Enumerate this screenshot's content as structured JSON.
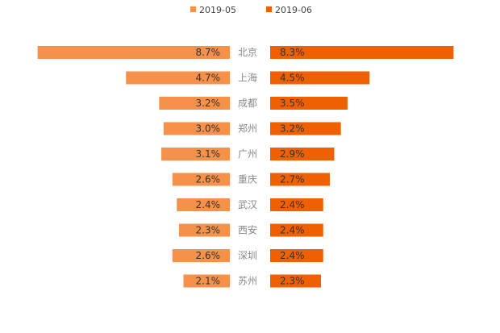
{
  "chart_data": {
    "type": "bar",
    "layout": "butterfly",
    "legend": [
      {
        "name": "2019-05",
        "color": "#F5914A"
      },
      {
        "name": "2019-06",
        "color": "#EE6002"
      }
    ],
    "categories": [
      "北京",
      "上海",
      "成都",
      "郑州",
      "广州",
      "重庆",
      "武汉",
      "西安",
      "深圳",
      "苏州"
    ],
    "series": [
      {
        "name": "2019-05",
        "side": "left",
        "color": "#F5914A",
        "values": [
          8.7,
          4.7,
          3.2,
          3.0,
          3.1,
          2.6,
          2.4,
          2.3,
          2.6,
          2.1
        ],
        "labels": [
          "8.7%",
          "4.7%",
          "3.2%",
          "3.0%",
          "3.1%",
          "2.6%",
          "2.4%",
          "2.3%",
          "2.6%",
          "2.1%"
        ]
      },
      {
        "name": "2019-06",
        "side": "right",
        "color": "#EE6002",
        "values": [
          8.3,
          4.5,
          3.5,
          3.2,
          2.9,
          2.7,
          2.4,
          2.4,
          2.4,
          2.3
        ],
        "labels": [
          "8.3%",
          "4.5%",
          "3.5%",
          "3.2%",
          "2.9%",
          "2.7%",
          "2.4%",
          "2.4%",
          "2.4%",
          "2.3%"
        ]
      }
    ],
    "unit": "%",
    "legend_position": "top-center"
  }
}
